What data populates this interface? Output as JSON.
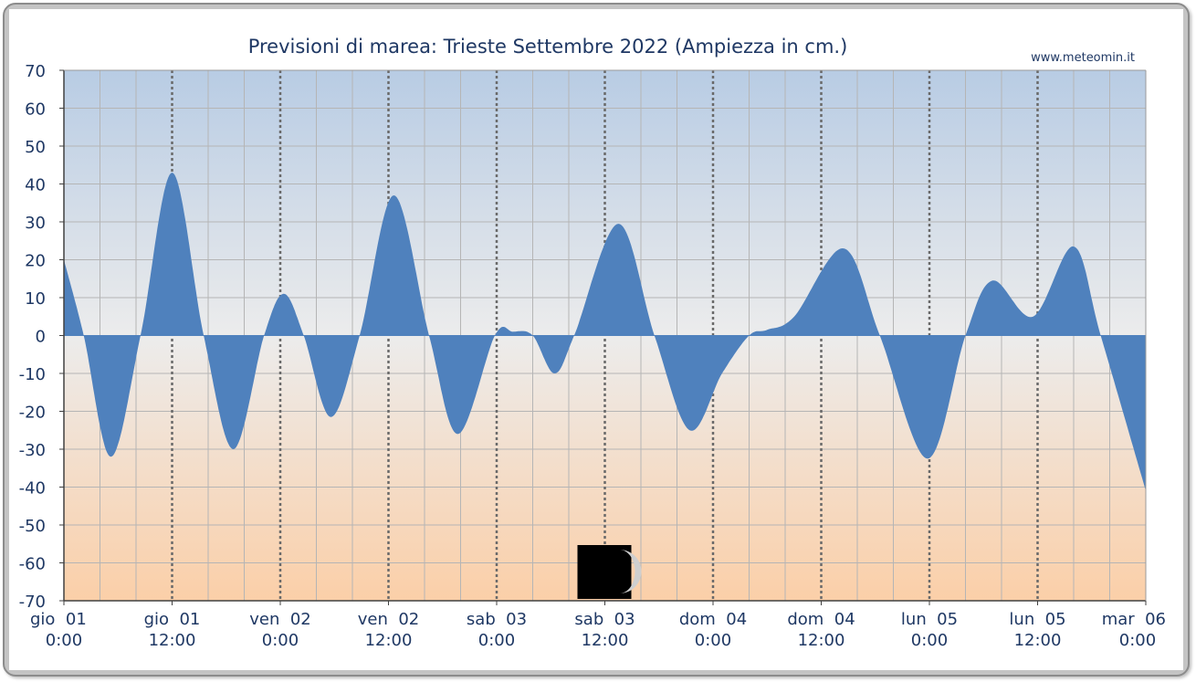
{
  "chart_data": {
    "type": "area",
    "title": "Previsioni di marea: Trieste Settembre 2022 (Ampiezza in cm.)",
    "source": "www.meteomin.it",
    "ylim": [
      -70,
      70
    ],
    "yticks": [
      "70",
      "60",
      "50",
      "40",
      "30",
      "20",
      "10",
      "0",
      "-10",
      "-20",
      "-30",
      "-40",
      "-50",
      "-60",
      "-70"
    ],
    "xlim_hours": [
      0,
      120
    ],
    "xticks": [
      {
        "hour": 0,
        "day": "gio  01",
        "time": "0:00"
      },
      {
        "hour": 12,
        "day": "gio  01",
        "time": "12:00"
      },
      {
        "hour": 24,
        "day": "ven  02",
        "time": "0:00"
      },
      {
        "hour": 36,
        "day": "ven  02",
        "time": "12:00"
      },
      {
        "hour": 48,
        "day": "sab  03",
        "time": "0:00"
      },
      {
        "hour": 60,
        "day": "sab  03",
        "time": "12:00"
      },
      {
        "hour": 72,
        "day": "dom  04",
        "time": "0:00"
      },
      {
        "hour": 84,
        "day": "dom  04",
        "time": "12:00"
      },
      {
        "hour": 96,
        "day": "lun  05",
        "time": "0:00"
      },
      {
        "hour": 108,
        "day": "lun  05",
        "time": "12:00"
      },
      {
        "hour": 120,
        "day": "mar  06",
        "time": "0:00"
      }
    ],
    "grid": true,
    "series": [
      {
        "color": "#4f81bd",
        "points": [
          [
            0,
            20
          ],
          [
            2.2,
            0
          ],
          [
            5.2,
            -32
          ],
          [
            8.5,
            0
          ],
          [
            12,
            43
          ],
          [
            15.5,
            0
          ],
          [
            18.8,
            -30
          ],
          [
            22.2,
            0
          ],
          [
            24.4,
            11
          ],
          [
            26.6,
            0
          ],
          [
            29.6,
            -21.5
          ],
          [
            32.8,
            0
          ],
          [
            36.6,
            37
          ],
          [
            40.5,
            0
          ],
          [
            43.7,
            -26
          ],
          [
            47.8,
            0
          ],
          [
            49.8,
            1
          ],
          [
            52,
            0
          ],
          [
            54.4,
            -10
          ],
          [
            56.6,
            0
          ],
          [
            61.5,
            29.5
          ],
          [
            65.5,
            0
          ],
          [
            69.4,
            -25
          ],
          [
            73,
            -10
          ],
          [
            76,
            0
          ],
          [
            78,
            1.5
          ],
          [
            81,
            5
          ],
          [
            86.5,
            23
          ],
          [
            90.5,
            0
          ],
          [
            95.8,
            -32.5
          ],
          [
            100,
            0
          ],
          [
            103,
            14.5
          ],
          [
            107.5,
            5
          ],
          [
            112,
            23.5
          ],
          [
            115,
            0
          ],
          [
            120,
            -41
          ]
        ]
      }
    ],
    "moon_phase": {
      "hour": 60,
      "phase": "waxing crescent"
    }
  }
}
